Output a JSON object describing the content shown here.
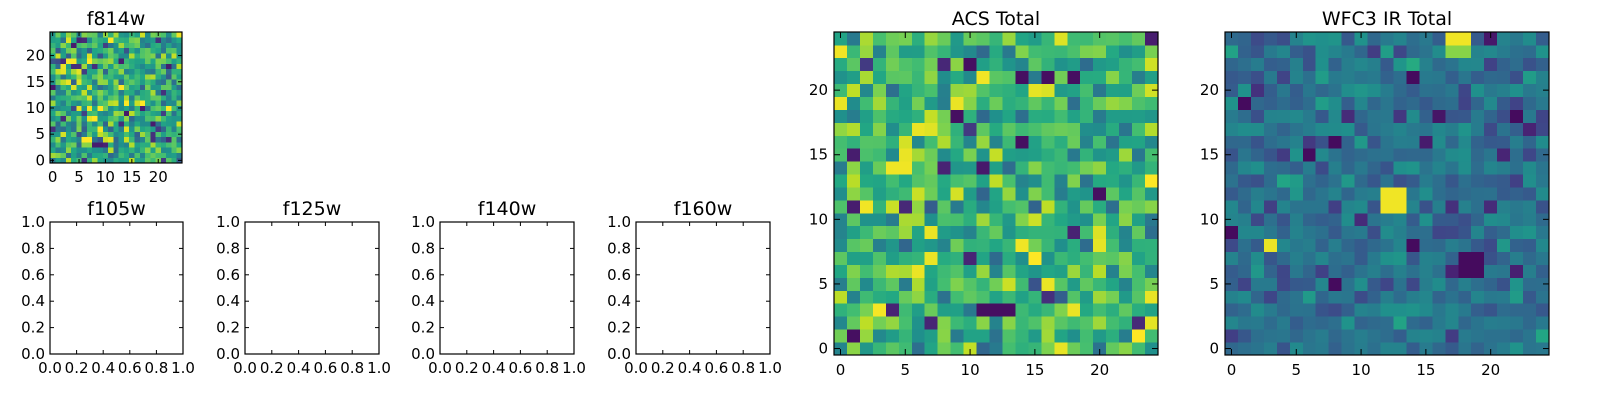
{
  "figure": {
    "colormap": "viridis",
    "background": "#ffffff"
  },
  "chart_data": [
    {
      "type": "heatmap",
      "title": "f814w",
      "grid_size": 25,
      "xlim": [
        -0.5,
        24.5
      ],
      "ylim": [
        -0.5,
        24.5
      ],
      "xticks": [
        0,
        5,
        10,
        15,
        20
      ],
      "yticks": [
        0,
        5,
        10,
        15,
        20
      ],
      "value_range": [
        0,
        1
      ],
      "seed": 814,
      "bias": 0.62,
      "spread": 0.34,
      "hotspots": [
        {
          "x": 3,
          "y": 15,
          "value": 0.97
        },
        {
          "x": 4,
          "y": 14,
          "value": 0.95
        },
        {
          "x": 5,
          "y": 15,
          "value": 0.95
        },
        {
          "x": 7,
          "y": 12,
          "value": 0.93
        },
        {
          "x": 7,
          "y": 8,
          "value": 0.96
        },
        {
          "x": 8,
          "y": 3,
          "value": 0.08
        },
        {
          "x": 9,
          "y": 3,
          "value": 0.08
        },
        {
          "x": 10,
          "y": 3,
          "value": 0.1
        }
      ]
    },
    {
      "type": "heatmap",
      "title": "f105w",
      "empty": true,
      "xlim": [
        0,
        1
      ],
      "ylim": [
        0,
        1
      ],
      "xticks": [
        "0.0",
        "0.2",
        "0.4",
        "0.6",
        "0.8",
        "1.0"
      ],
      "yticks": [
        "0.0",
        "0.2",
        "0.4",
        "0.6",
        "0.8",
        "1.0"
      ]
    },
    {
      "type": "heatmap",
      "title": "f125w",
      "empty": true,
      "xlim": [
        0,
        1
      ],
      "ylim": [
        0,
        1
      ],
      "xticks": [
        "0.0",
        "0.2",
        "0.4",
        "0.6",
        "0.8",
        "1.0"
      ],
      "yticks": [
        "0.0",
        "0.2",
        "0.4",
        "0.6",
        "0.8",
        "1.0"
      ]
    },
    {
      "type": "heatmap",
      "title": "f140w",
      "empty": true,
      "xlim": [
        0,
        1
      ],
      "ylim": [
        0,
        1
      ],
      "xticks": [
        "0.0",
        "0.2",
        "0.4",
        "0.6",
        "0.8",
        "1.0"
      ],
      "yticks": [
        "0.0",
        "0.2",
        "0.4",
        "0.6",
        "0.8",
        "1.0"
      ]
    },
    {
      "type": "heatmap",
      "title": "f160w",
      "empty": true,
      "xlim": [
        0,
        1
      ],
      "ylim": [
        0,
        1
      ],
      "xticks": [
        "0.0",
        "0.2",
        "0.4",
        "0.6",
        "0.8",
        "1.0"
      ],
      "yticks": [
        "0.0",
        "0.2",
        "0.4",
        "0.6",
        "0.8",
        "1.0"
      ]
    },
    {
      "type": "heatmap",
      "title": "ACS Total",
      "grid_size": 25,
      "xlim": [
        -0.5,
        24.5
      ],
      "ylim": [
        -0.5,
        24.5
      ],
      "xticks": [
        0,
        5,
        10,
        15,
        20
      ],
      "yticks": [
        0,
        5,
        10,
        15,
        20
      ],
      "value_range": [
        0,
        1
      ],
      "seed": 2121,
      "bias": 0.66,
      "spread": 0.3,
      "hotspots": [
        {
          "x": 0,
          "y": 23,
          "value": 0.98
        },
        {
          "x": 0,
          "y": 19,
          "value": 0.97
        },
        {
          "x": 4,
          "y": 14,
          "value": 0.98
        },
        {
          "x": 5,
          "y": 14,
          "value": 0.98
        },
        {
          "x": 5,
          "y": 15,
          "value": 0.97
        },
        {
          "x": 6,
          "y": 17,
          "value": 0.97
        },
        {
          "x": 7,
          "y": 9,
          "value": 0.97
        },
        {
          "x": 7,
          "y": 7,
          "value": 0.97
        },
        {
          "x": 6,
          "y": 6,
          "value": 0.97
        },
        {
          "x": 9,
          "y": 19,
          "value": 0.97
        },
        {
          "x": 9,
          "y": 18,
          "value": 0.04
        },
        {
          "x": 10,
          "y": 22,
          "value": 0.04
        },
        {
          "x": 11,
          "y": 3,
          "value": 0.04
        },
        {
          "x": 12,
          "y": 3,
          "value": 0.04
        },
        {
          "x": 13,
          "y": 3,
          "value": 0.04
        },
        {
          "x": 14,
          "y": 21,
          "value": 0.04
        },
        {
          "x": 16,
          "y": 21,
          "value": 0.04
        },
        {
          "x": 18,
          "y": 21,
          "value": 0.04
        },
        {
          "x": 20,
          "y": 12,
          "value": 0.04
        },
        {
          "x": 14,
          "y": 16,
          "value": 0.04
        },
        {
          "x": 1,
          "y": 1,
          "value": 0.04
        },
        {
          "x": 4,
          "y": 3,
          "value": 0.1
        },
        {
          "x": 18,
          "y": 3,
          "value": 0.97
        },
        {
          "x": 24,
          "y": 4,
          "value": 0.97
        }
      ]
    },
    {
      "type": "heatmap",
      "title": "WFC3 IR Total",
      "grid_size": 25,
      "xlim": [
        -0.5,
        24.5
      ],
      "ylim": [
        -0.5,
        24.5
      ],
      "xticks": [
        0,
        5,
        10,
        15,
        20
      ],
      "yticks": [
        0,
        5,
        10,
        15,
        20
      ],
      "value_range": [
        0,
        1
      ],
      "seed": 3301,
      "bias": 0.38,
      "spread": 0.16,
      "hotspots": [
        {
          "x": 17,
          "y": 24,
          "value": 0.98
        },
        {
          "x": 18,
          "y": 24,
          "value": 0.98
        },
        {
          "x": 17,
          "y": 23,
          "value": 0.82
        },
        {
          "x": 18,
          "y": 23,
          "value": 0.82
        },
        {
          "x": 12,
          "y": 12,
          "value": 0.98
        },
        {
          "x": 13,
          "y": 12,
          "value": 0.98
        },
        {
          "x": 12,
          "y": 11,
          "value": 0.98
        },
        {
          "x": 13,
          "y": 11,
          "value": 0.98
        },
        {
          "x": 3,
          "y": 8,
          "value": 0.97
        },
        {
          "x": 1,
          "y": 19,
          "value": 0.03
        },
        {
          "x": 8,
          "y": 16,
          "value": 0.03
        },
        {
          "x": 6,
          "y": 15,
          "value": 0.03
        },
        {
          "x": 14,
          "y": 21,
          "value": 0.03
        },
        {
          "x": 0,
          "y": 9,
          "value": 0.03
        },
        {
          "x": 14,
          "y": 8,
          "value": 0.03
        },
        {
          "x": 18,
          "y": 6,
          "value": 0.03
        },
        {
          "x": 19,
          "y": 6,
          "value": 0.03
        },
        {
          "x": 18,
          "y": 7,
          "value": 0.03
        },
        {
          "x": 19,
          "y": 7,
          "value": 0.03
        },
        {
          "x": 17,
          "y": 6,
          "value": 0.1
        },
        {
          "x": 8,
          "y": 5,
          "value": 0.03
        },
        {
          "x": 22,
          "y": 18,
          "value": 0.03
        },
        {
          "x": 23,
          "y": 17,
          "value": 0.1
        }
      ]
    }
  ]
}
